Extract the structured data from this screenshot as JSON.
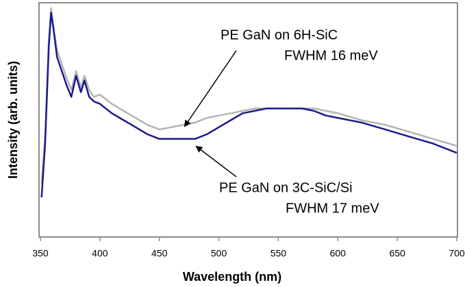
{
  "chart_data": {
    "type": "line",
    "x_label": "Wavelength (nm)",
    "y_label": "Intensity (arb. units)",
    "xlim": [
      350,
      700
    ],
    "xticks": [
      350,
      400,
      450,
      500,
      550,
      600,
      650,
      700
    ],
    "ylim": [
      0,
      100
    ],
    "x": [
      351,
      354,
      357,
      359,
      361,
      364,
      368,
      372,
      376,
      380,
      384,
      387,
      391,
      395,
      400,
      410,
      420,
      430,
      440,
      450,
      460,
      470,
      480,
      490,
      500,
      510,
      520,
      530,
      540,
      550,
      560,
      570,
      580,
      590,
      600,
      620,
      640,
      660,
      680,
      700
    ],
    "series": [
      {
        "name": "PE GaN on 6H-SiC",
        "color": "#b4b4b4",
        "values": [
          23,
          43,
          84,
          98,
          90,
          80,
          74,
          68,
          63,
          71,
          64,
          69,
          63,
          60,
          61,
          57,
          54,
          51,
          48,
          46,
          47,
          48,
          49,
          51,
          52,
          53,
          54,
          55,
          55,
          55,
          55,
          55,
          55,
          54,
          53,
          50,
          48,
          45,
          42,
          39
        ]
      },
      {
        "name": "PE GaN on 3C-SiC/Si",
        "color": "#1a1a8c",
        "values": [
          17,
          40,
          81,
          96,
          89,
          77,
          71,
          65,
          60,
          69,
          62,
          67,
          60,
          58,
          57,
          53,
          50,
          47,
          44,
          42,
          42,
          42,
          42,
          44,
          47,
          50,
          53,
          54,
          55,
          55,
          55,
          55,
          54,
          52,
          51,
          49,
          46,
          43,
          40,
          36
        ]
      }
    ],
    "annotations": [
      "FWHM 16 meV",
      "FWHM 17 meV"
    ]
  }
}
